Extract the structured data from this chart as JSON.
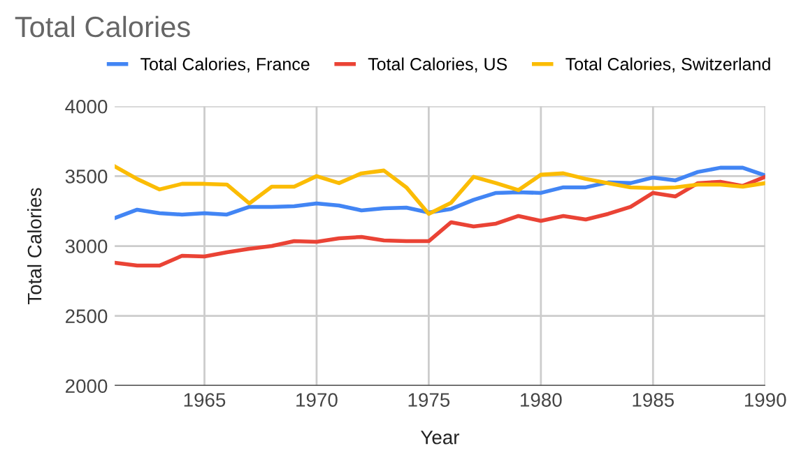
{
  "chart_data": {
    "type": "line",
    "title": "Total Calories",
    "xlabel": "Year",
    "ylabel": "Total Calories",
    "x": [
      1961,
      1962,
      1963,
      1964,
      1965,
      1966,
      1967,
      1968,
      1969,
      1970,
      1971,
      1972,
      1973,
      1974,
      1975,
      1976,
      1977,
      1978,
      1979,
      1980,
      1981,
      1982,
      1983,
      1984,
      1985,
      1986,
      1987,
      1988,
      1989,
      1990
    ],
    "series": [
      {
        "name": "Total Calories, France",
        "color": "#4285f4",
        "values": [
          3200,
          3260,
          3235,
          3225,
          3235,
          3225,
          3280,
          3280,
          3285,
          3305,
          3290,
          3255,
          3270,
          3275,
          3240,
          3265,
          3330,
          3380,
          3385,
          3380,
          3420,
          3420,
          3455,
          3450,
          3490,
          3470,
          3530,
          3560,
          3560,
          3505
        ]
      },
      {
        "name": "Total Calories, US",
        "color": "#ea4335",
        "values": [
          2880,
          2860,
          2860,
          2930,
          2925,
          2955,
          2980,
          3000,
          3035,
          3030,
          3055,
          3065,
          3040,
          3035,
          3035,
          3170,
          3140,
          3160,
          3215,
          3180,
          3215,
          3190,
          3230,
          3280,
          3380,
          3355,
          3450,
          3460,
          3430,
          3495
        ]
      },
      {
        "name": "Total Calories, Switzerland",
        "color": "#fbbc04",
        "values": [
          3570,
          3480,
          3405,
          3445,
          3445,
          3440,
          3305,
          3425,
          3425,
          3500,
          3450,
          3520,
          3540,
          3420,
          3230,
          3310,
          3495,
          3450,
          3400,
          3510,
          3520,
          3480,
          3450,
          3420,
          3415,
          3420,
          3440,
          3440,
          3425,
          3450
        ]
      }
    ],
    "xlim": [
      1961,
      1990
    ],
    "xticks": [
      1965,
      1970,
      1975,
      1980,
      1985,
      1990
    ],
    "ylim": [
      2000,
      4000
    ],
    "yticks": [
      2000,
      2500,
      3000,
      3500,
      4000
    ],
    "grid": true,
    "legend": "top",
    "marker": "none",
    "line_style": "solid"
  }
}
